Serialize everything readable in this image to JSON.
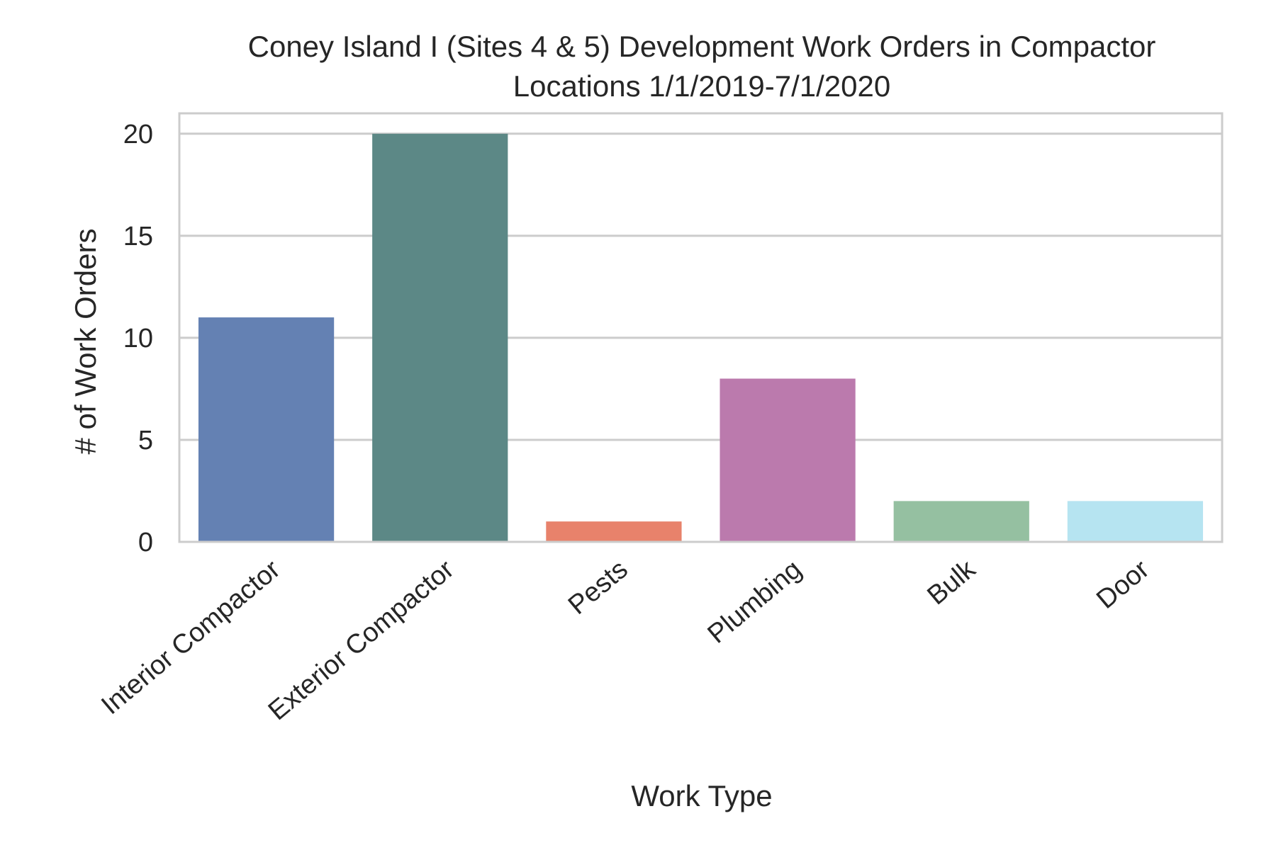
{
  "chart_data": {
    "type": "bar",
    "title_lines": [
      "Coney Island I (Sites 4 & 5) Development Work Orders in Compactor",
      "Locations 1/1/2019-7/1/2020"
    ],
    "xlabel": "Work Type",
    "ylabel": "# of Work Orders",
    "categories": [
      "Interior Compactor",
      "Exterior Compactor",
      "Pests",
      "Plumbing",
      "Bulk",
      "Door"
    ],
    "values": [
      11,
      20,
      1,
      8,
      2,
      2
    ],
    "colors": [
      "#6481b3",
      "#5c8886",
      "#e8826b",
      "#bb7aad",
      "#95c0a1",
      "#b6e4f1"
    ],
    "yticks": [
      "0",
      "5",
      "10",
      "15",
      "20"
    ],
    "ylim": [
      0,
      21
    ],
    "grid": true,
    "legend": false
  }
}
